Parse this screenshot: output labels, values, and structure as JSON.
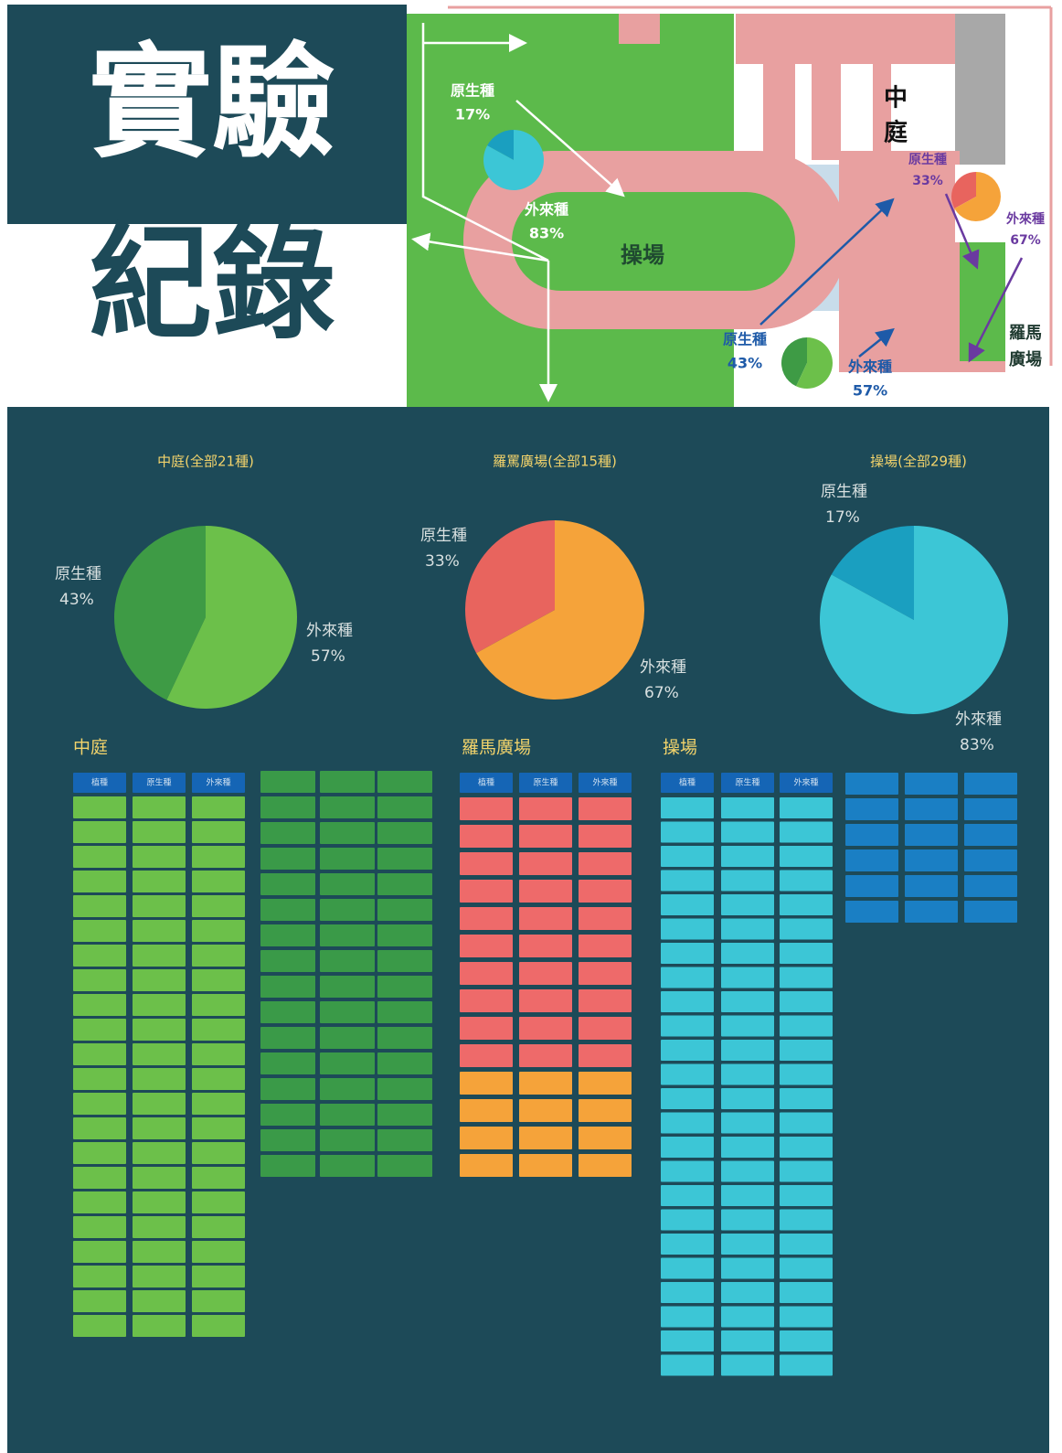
{
  "title": [
    "實驗",
    "紀錄"
  ],
  "map": {
    "places": [
      {
        "lines": [
          "操場"
        ]
      },
      {
        "lines": [
          "中",
          "庭"
        ]
      },
      {
        "lines": [
          "羅馬",
          "廣場"
        ]
      }
    ],
    "pies": [
      {
        "labels": [
          "原生種",
          "外來種"
        ],
        "values": [
          17,
          83
        ],
        "value_labels": [
          "17%",
          "83%"
        ],
        "colors": [
          "#1a9fc0",
          "#3cc6d6"
        ]
      },
      {
        "labels": [
          "原生種",
          "外來種"
        ],
        "values": [
          33,
          67
        ],
        "value_labels": [
          "33%",
          "67%"
        ],
        "colors": [
          "#e8645e",
          "#f5a33a"
        ]
      },
      {
        "labels": [
          "原生種",
          "外來種"
        ],
        "values": [
          43,
          57
        ],
        "value_labels": [
          "43%",
          "57%"
        ],
        "colors": [
          "#3e9b45",
          "#6cc04a"
        ]
      }
    ]
  },
  "chart_data": [
    {
      "type": "pie",
      "title": "中庭(全部21種)",
      "categories": [
        "原生種",
        "外來種"
      ],
      "values": [
        43,
        57
      ],
      "value_labels": [
        "43%",
        "57%"
      ],
      "colors": [
        "#3e9b45",
        "#6cc04a"
      ]
    },
    {
      "type": "pie",
      "title": "羅罵廣場(全部15種)",
      "categories": [
        "原生種",
        "外來種"
      ],
      "values": [
        33,
        67
      ],
      "value_labels": [
        "33%",
        "67%"
      ],
      "colors": [
        "#e8645e",
        "#f5a33a"
      ]
    },
    {
      "type": "pie",
      "title": "操場(全部29種)",
      "categories": [
        "原生種",
        "外來種"
      ],
      "values": [
        17,
        83
      ],
      "value_labels": [
        "17%",
        "83%"
      ],
      "colors": [
        "#1a9fc0",
        "#3cc6d6"
      ]
    }
  ],
  "tables": [
    {
      "section": "中庭",
      "header": [
        "植種",
        "原生種",
        "外來種"
      ]
    },
    {
      "section": "羅馬廣場",
      "header": [
        "植種",
        "原生種",
        "外來種"
      ]
    },
    {
      "section": "操場",
      "header": [
        "植種",
        "原生種",
        "外來種"
      ]
    }
  ]
}
